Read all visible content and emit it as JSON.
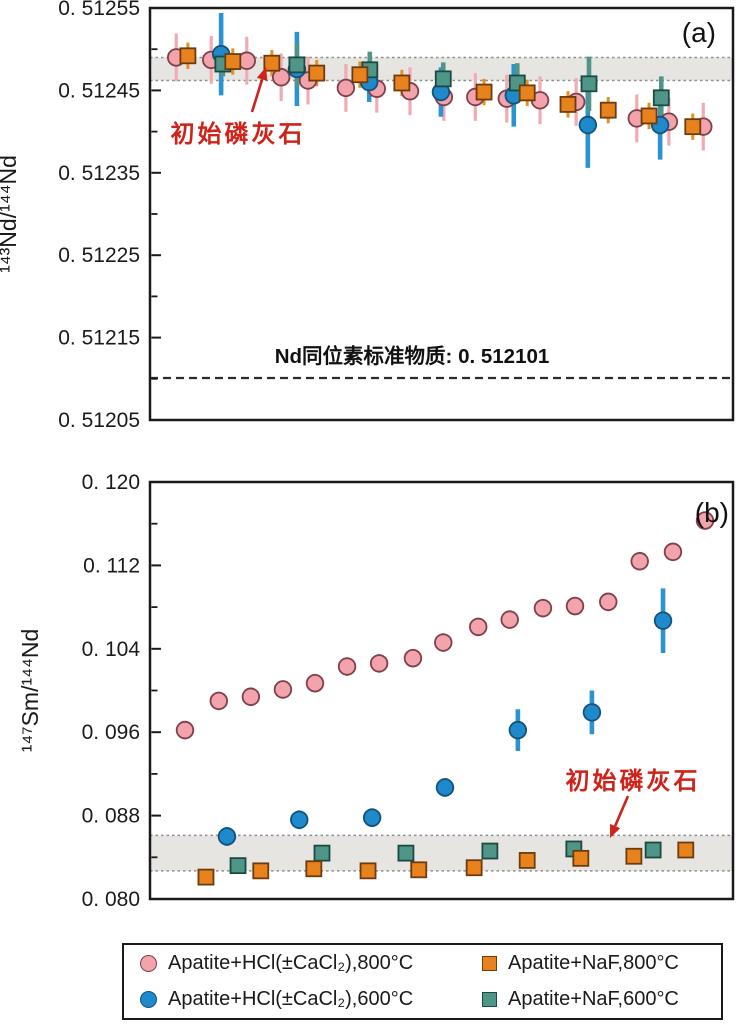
{
  "colors": {
    "pink": {
      "fill": "#F2A3AC",
      "stroke": "#7E4049",
      "bar": "#F2ABB3"
    },
    "blue": {
      "fill": "#1F8ACB",
      "stroke": "#14527A",
      "bar": "#2A93D0"
    },
    "orange": {
      "fill": "#E8821D",
      "stroke": "#6B3D0E",
      "bar": "#E8901F"
    },
    "teal": {
      "fill": "#4F9588",
      "stroke": "#1C4A42",
      "bar": "#4F9588"
    },
    "band_fill": "#E6E5E2",
    "band_edge": "#8F8F8F",
    "ref_line": "#2B2B2B",
    "annotation_red": "#CF231A",
    "axis": "#1A1A1A"
  },
  "legend": {
    "items": [
      {
        "label": "Apatite+HCl(±CaCl₂),800°C",
        "marker": "circle",
        "color": "pink"
      },
      {
        "label": "Apatite+HCl(±CaCl₂),600°C",
        "marker": "circle",
        "color": "blue"
      },
      {
        "label": "Apatite+NaF,800°C",
        "marker": "square",
        "color": "orange"
      },
      {
        "label": "Apatite+NaF,600°C",
        "marker": "square",
        "color": "teal"
      }
    ]
  },
  "chart_data": [
    {
      "id": "a",
      "type": "scatter",
      "corner_label": "(a)",
      "ylabel": "¹⁴³Nd/¹⁴⁴Nd",
      "xlabel": "",
      "ylim": [
        0.51205,
        0.51255
      ],
      "yticks": [
        {
          "v": 0.51255,
          "label": "0. 51255"
        },
        {
          "v": 0.51245,
          "label": "0. 51245"
        },
        {
          "v": 0.51235,
          "label": "0. 51235"
        },
        {
          "v": 0.51225,
          "label": "0. 51225"
        },
        {
          "v": 0.51215,
          "label": "0. 51215"
        },
        {
          "v": 0.51205,
          "label": "0. 51205"
        }
      ],
      "minor_ticks": [
        0.5125,
        0.5124,
        0.5123,
        0.5122,
        0.5121
      ],
      "band": {
        "lo": 0.512462,
        "hi": 0.51249
      },
      "ref_line": {
        "value": 0.512101,
        "label": "Nd同位素标准物质: 0. 512101"
      },
      "annotation": {
        "text": "初始磷灰石"
      },
      "series": [
        {
          "name": "Apatite+HCl(±CaCl₂),800°C",
          "color": "pink",
          "marker": "circle",
          "points": [
            {
              "x": 4.5,
              "y": 0.51249,
              "e": 2.9e-05
            },
            {
              "x": 10.5,
              "y": 0.512487,
              "e": 2.9e-05
            },
            {
              "x": 16.6,
              "y": 0.512486,
              "e": 2.9e-05
            },
            {
              "x": 22.5,
              "y": 0.512466,
              "e": 2.9e-05
            },
            {
              "x": 27.1,
              "y": 0.512462,
              "e": 2.9e-05
            },
            {
              "x": 33.6,
              "y": 0.512453,
              "e": 2.9e-05
            },
            {
              "x": 38.9,
              "y": 0.512452,
              "e": 2.9e-05
            },
            {
              "x": 44.6,
              "y": 0.512449,
              "e": 2.9e-05
            },
            {
              "x": 50.4,
              "y": 0.512442,
              "e": 2.9e-05
            },
            {
              "x": 55.8,
              "y": 0.512442,
              "e": 2.9e-05
            },
            {
              "x": 61.2,
              "y": 0.51244,
              "e": 2.9e-05
            },
            {
              "x": 66.9,
              "y": 0.512438,
              "e": 2.9e-05
            },
            {
              "x": 73.1,
              "y": 0.512436,
              "e": 2.9e-05
            },
            {
              "x": 83.5,
              "y": 0.512416,
              "e": 2.9e-05
            },
            {
              "x": 89.0,
              "y": 0.512412,
              "e": 2.9e-05
            },
            {
              "x": 94.9,
              "y": 0.512406,
              "e": 2.9e-05
            }
          ]
        },
        {
          "name": "Apatite+HCl(±CaCl₂),600°C",
          "color": "blue",
          "marker": "circle",
          "points": [
            {
              "x": 12.2,
              "y": 0.512494,
              "e": 5e-05
            },
            {
              "x": 25.2,
              "y": 0.512476,
              "e": 4.5e-05
            },
            {
              "x": 37.6,
              "y": 0.51246,
              "e": 2.4e-05
            },
            {
              "x": 49.9,
              "y": 0.512448,
              "e": 3e-05
            },
            {
              "x": 62.4,
              "y": 0.512444,
              "e": 3.8e-05
            },
            {
              "x": 75.1,
              "y": 0.512408,
              "e": 5.2e-05
            },
            {
              "x": 87.5,
              "y": 0.512408,
              "e": 4.2e-05
            }
          ]
        },
        {
          "name": "Apatite+NaF,600°C",
          "color": "teal",
          "marker": "square",
          "points": [
            {
              "x": 12.5,
              "y": 0.512482,
              "e": 1.5e-05
            },
            {
              "x": 25.2,
              "y": 0.512481,
              "e": 2.6e-05
            },
            {
              "x": 37.7,
              "y": 0.512475,
              "e": 2.2e-05
            },
            {
              "x": 50.3,
              "y": 0.512464,
              "e": 2e-05
            },
            {
              "x": 63.0,
              "y": 0.512459,
              "e": 2.4e-05
            },
            {
              "x": 75.3,
              "y": 0.512458,
              "e": 3.3e-05
            },
            {
              "x": 87.7,
              "y": 0.512441,
              "e": 2.6e-05
            }
          ]
        },
        {
          "name": "Apatite+NaF,800°C",
          "color": "orange",
          "marker": "square",
          "points": [
            {
              "x": 6.5,
              "y": 0.512492,
              "e": 1.6e-05
            },
            {
              "x": 14.2,
              "y": 0.512485,
              "e": 1.6e-05
            },
            {
              "x": 20.9,
              "y": 0.512483,
              "e": 1.6e-05
            },
            {
              "x": 28.6,
              "y": 0.512471,
              "e": 1.6e-05
            },
            {
              "x": 36.0,
              "y": 0.512469,
              "e": 1.6e-05
            },
            {
              "x": 43.2,
              "y": 0.512459,
              "e": 1.6e-05
            },
            {
              "x": 57.3,
              "y": 0.512448,
              "e": 1.6e-05
            },
            {
              "x": 64.7,
              "y": 0.512447,
              "e": 1.6e-05
            },
            {
              "x": 71.7,
              "y": 0.512433,
              "e": 1.6e-05
            },
            {
              "x": 78.6,
              "y": 0.512426,
              "e": 1.6e-05
            },
            {
              "x": 85.6,
              "y": 0.512419,
              "e": 1.6e-05
            },
            {
              "x": 93.1,
              "y": 0.512406,
              "e": 1.6e-05
            }
          ]
        }
      ]
    },
    {
      "id": "b",
      "type": "scatter",
      "corner_label": "(b)",
      "ylabel": "¹⁴⁷Sm/¹⁴⁴Nd",
      "xlabel": "",
      "ylim": [
        0.08,
        0.12
      ],
      "yticks": [
        {
          "v": 0.12,
          "label": "0. 120"
        },
        {
          "v": 0.112,
          "label": "0. 112"
        },
        {
          "v": 0.104,
          "label": "0. 104"
        },
        {
          "v": 0.096,
          "label": "0. 096"
        },
        {
          "v": 0.088,
          "label": "0. 088"
        },
        {
          "v": 0.08,
          "label": "0. 080"
        }
      ],
      "minor_ticks": [
        0.116,
        0.108,
        0.1,
        0.092,
        0.084
      ],
      "band": {
        "lo": 0.0827,
        "hi": 0.0861
      },
      "ref_line": null,
      "annotation": {
        "text": "初始磷灰石"
      },
      "series": [
        {
          "name": "Apatite+HCl(±CaCl₂),800°C",
          "color": "pink",
          "marker": "circle",
          "points": [
            {
              "x": 6.0,
              "y": 0.0962,
              "e": 0.0009
            },
            {
              "x": 11.8,
              "y": 0.099,
              "e": 0.0009
            },
            {
              "x": 17.3,
              "y": 0.0994,
              "e": 0.0009
            },
            {
              "x": 22.8,
              "y": 0.1001,
              "e": 0.0009
            },
            {
              "x": 28.3,
              "y": 0.1007,
              "e": 0.0009
            },
            {
              "x": 33.8,
              "y": 0.1023,
              "e": 0.0009
            },
            {
              "x": 39.3,
              "y": 0.1026,
              "e": 0.0009
            },
            {
              "x": 45.1,
              "y": 0.1031,
              "e": 0.0009
            },
            {
              "x": 50.3,
              "y": 0.1046,
              "e": 0.0009
            },
            {
              "x": 56.3,
              "y": 0.1061,
              "e": 0.0009
            },
            {
              "x": 61.7,
              "y": 0.1068,
              "e": 0.0009
            },
            {
              "x": 67.4,
              "y": 0.1079,
              "e": 0.0009
            },
            {
              "x": 72.9,
              "y": 0.1081,
              "e": 0.0009
            },
            {
              "x": 78.6,
              "y": 0.1085,
              "e": 0.0009
            },
            {
              "x": 84.0,
              "y": 0.1124,
              "e": 0.0009
            },
            {
              "x": 89.7,
              "y": 0.1133,
              "e": 0.0009
            },
            {
              "x": 95.2,
              "y": 0.1163,
              "e": 0.0009
            }
          ]
        },
        {
          "name": "Apatite+HCl(±CaCl₂),600°C",
          "color": "blue",
          "marker": "circle",
          "points": [
            {
              "x": 13.2,
              "y": 0.086,
              "e": 0.0009
            },
            {
              "x": 25.6,
              "y": 0.0876,
              "e": 0.0009
            },
            {
              "x": 38.1,
              "y": 0.0878,
              "e": 0.0009
            },
            {
              "x": 50.6,
              "y": 0.0907,
              "e": 0.0009
            },
            {
              "x": 63.1,
              "y": 0.0962,
              "e": 0.002
            },
            {
              "x": 75.8,
              "y": 0.0979,
              "e": 0.0021
            },
            {
              "x": 88.0,
              "y": 0.1067,
              "e": 0.0031
            }
          ]
        },
        {
          "name": "Apatite+NaF,600°C",
          "color": "teal",
          "marker": "square",
          "points": [
            {
              "x": 15.1,
              "y": 0.0832,
              "e": 0.0005
            },
            {
              "x": 29.5,
              "y": 0.0844,
              "e": 0.0005
            },
            {
              "x": 43.9,
              "y": 0.0844,
              "e": 0.0005
            },
            {
              "x": 58.3,
              "y": 0.0846,
              "e": 0.0005
            },
            {
              "x": 72.7,
              "y": 0.0848,
              "e": 0.0005
            },
            {
              "x": 86.3,
              "y": 0.0847,
              "e": 0.0005
            }
          ]
        },
        {
          "name": "Apatite+NaF,800°C",
          "color": "orange",
          "marker": "square",
          "points": [
            {
              "x": 9.6,
              "y": 0.0821,
              "e": 0.0005
            },
            {
              "x": 19.0,
              "y": 0.0827,
              "e": 0.0005
            },
            {
              "x": 28.1,
              "y": 0.0829,
              "e": 0.0005
            },
            {
              "x": 37.4,
              "y": 0.0827,
              "e": 0.0005
            },
            {
              "x": 46.1,
              "y": 0.0828,
              "e": 0.0005
            },
            {
              "x": 55.6,
              "y": 0.083,
              "e": 0.0005
            },
            {
              "x": 64.7,
              "y": 0.0837,
              "e": 0.0005
            },
            {
              "x": 73.9,
              "y": 0.0839,
              "e": 0.0005
            },
            {
              "x": 83.0,
              "y": 0.0841,
              "e": 0.0005
            },
            {
              "x": 91.9,
              "y": 0.0847,
              "e": 0.0005
            }
          ]
        }
      ]
    }
  ]
}
